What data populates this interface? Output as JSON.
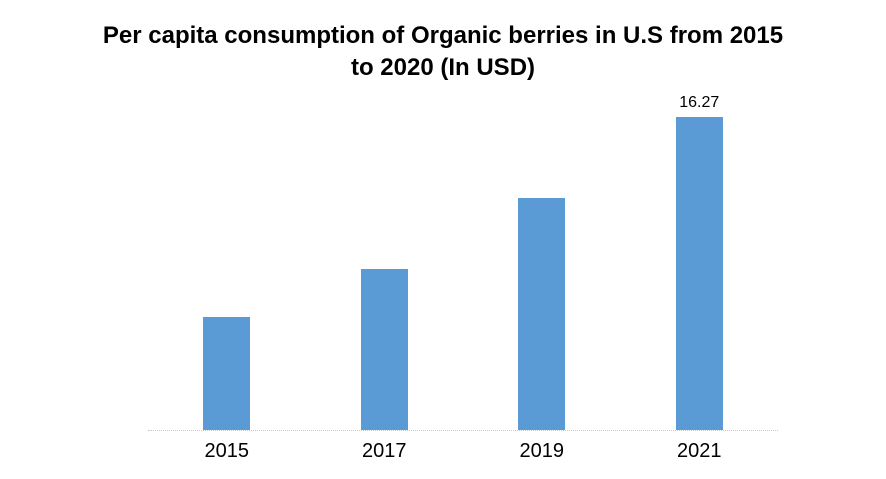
{
  "chart_data": {
    "type": "bar",
    "title": "Per capita consumption of Organic berries in U.S from 2015 to 2020 (In USD)",
    "categories": [
      "2015",
      "2017",
      "2019",
      "2021"
    ],
    "values": [
      5.9,
      8.4,
      12.1,
      16.27
    ],
    "data_labels": [
      "",
      "",
      "",
      "16.27"
    ],
    "xlabel": "",
    "ylabel": "",
    "ylim": [
      0,
      17.7
    ],
    "grid": false,
    "legend": "none",
    "bar_color": "#5B9BD5"
  }
}
